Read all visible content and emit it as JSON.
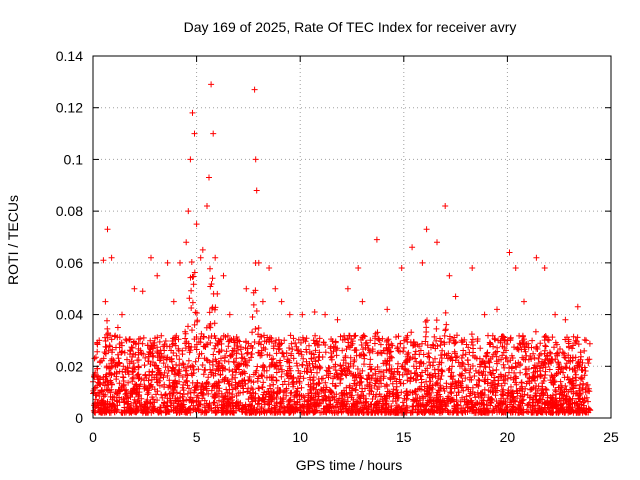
{
  "chart_data": {
    "type": "scatter",
    "title": "Day 169 of 2025, Rate Of TEC Index for receiver avry",
    "xlabel": "GPS time / hours",
    "ylabel": "ROTI / TECUs",
    "xlim": [
      0,
      25
    ],
    "ylim": [
      0,
      0.14
    ],
    "xticks": [
      "0",
      "5",
      "10",
      "15",
      "20",
      "25"
    ],
    "yticks": [
      "0",
      "0.02",
      "0.04",
      "0.06",
      "0.08",
      "0.1",
      "0.12",
      "0.14"
    ],
    "grid": true,
    "legend": "none",
    "marker": "plus",
    "color": "#ff0000",
    "series": [
      {
        "x": [
          0.3,
          0.5,
          0.6,
          0.7,
          0.9,
          1.2,
          1.4,
          2.0,
          2.4,
          2.8,
          3.1,
          3.6,
          3.9,
          4.2,
          4.5,
          4.6,
          4.7,
          4.8,
          4.9,
          5.0,
          5.2,
          5.3,
          5.5,
          5.6,
          5.7,
          5.8,
          5.9,
          6.0,
          6.3,
          6.6,
          7.0,
          7.4,
          7.8,
          7.85,
          7.9,
          8.0,
          8.2,
          8.5,
          8.8,
          9.1,
          9.5,
          10.1,
          10.7,
          11.2,
          11.8,
          12.3,
          12.8,
          13.0,
          13.7,
          14.2,
          14.9,
          15.4,
          15.9,
          16.1,
          16.6,
          17.0,
          17.2,
          17.5,
          18.3,
          18.9,
          19.5,
          20.1,
          20.4,
          20.8,
          21.4,
          21.8,
          22.3,
          22.8,
          23.4,
          23.8
        ],
        "y": [
          0.03,
          0.061,
          0.045,
          0.073,
          0.062,
          0.035,
          0.04,
          0.05,
          0.049,
          0.062,
          0.055,
          0.06,
          0.045,
          0.06,
          0.068,
          0.08,
          0.1,
          0.118,
          0.11,
          0.075,
          0.062,
          0.065,
          0.082,
          0.093,
          0.129,
          0.11,
          0.062,
          0.048,
          0.055,
          0.04,
          0.03,
          0.05,
          0.127,
          0.1,
          0.088,
          0.06,
          0.045,
          0.058,
          0.05,
          0.045,
          0.04,
          0.04,
          0.041,
          0.04,
          0.038,
          0.05,
          0.058,
          0.045,
          0.069,
          0.042,
          0.058,
          0.066,
          0.06,
          0.073,
          0.068,
          0.082,
          0.055,
          0.047,
          0.058,
          0.04,
          0.042,
          0.064,
          0.058,
          0.045,
          0.062,
          0.058,
          0.04,
          0.038,
          0.043,
          0.03
        ]
      }
    ]
  }
}
